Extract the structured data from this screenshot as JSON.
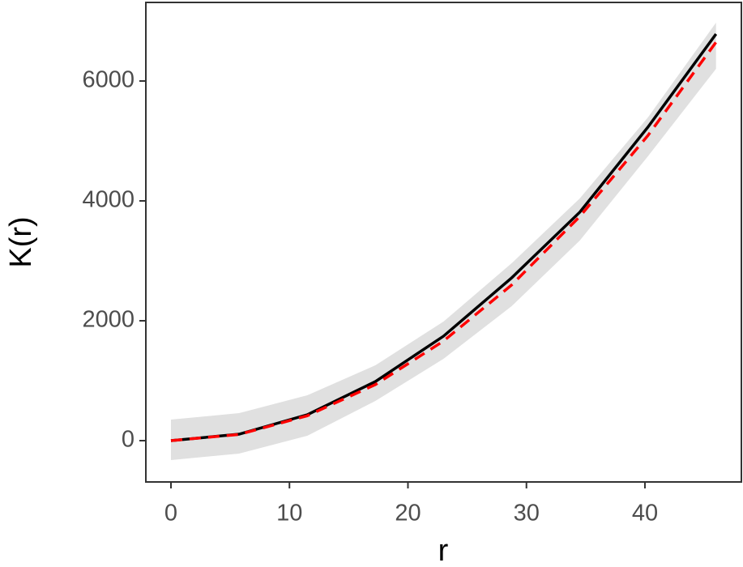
{
  "chart_data": {
    "type": "line",
    "x_label": "r",
    "y_label": "K(r)",
    "x": [
      0,
      5.75,
      11.5,
      17.25,
      23,
      28.75,
      34.5,
      40.25,
      46
    ],
    "band": {
      "color": "#e0e0e0",
      "upper": [
        351,
        459,
        757,
        1257,
        1986,
        2959,
        4041,
        5392,
        6973
      ],
      "lower": [
        -324,
        -216,
        81,
        662,
        1365,
        2243,
        3338,
        4743,
        6203
      ]
    },
    "series": [
      {
        "color": "#000000",
        "dash": false,
        "values": [
          0,
          108,
          432,
          986,
          1743,
          2716,
          3811,
          5230,
          6784
        ]
      },
      {
        "color": "#ff0000",
        "dash": true,
        "values": [
          0,
          104,
          415,
          935,
          1662,
          2597,
          3739,
          5090,
          6648
        ]
      }
    ],
    "xlim": [
      -2.12,
      48.14
    ],
    "ylim": [
      -689,
      7311
    ],
    "xticks": [
      0,
      10,
      20,
      30,
      40
    ],
    "yticks": [
      0,
      2000,
      4000,
      6000
    ]
  }
}
